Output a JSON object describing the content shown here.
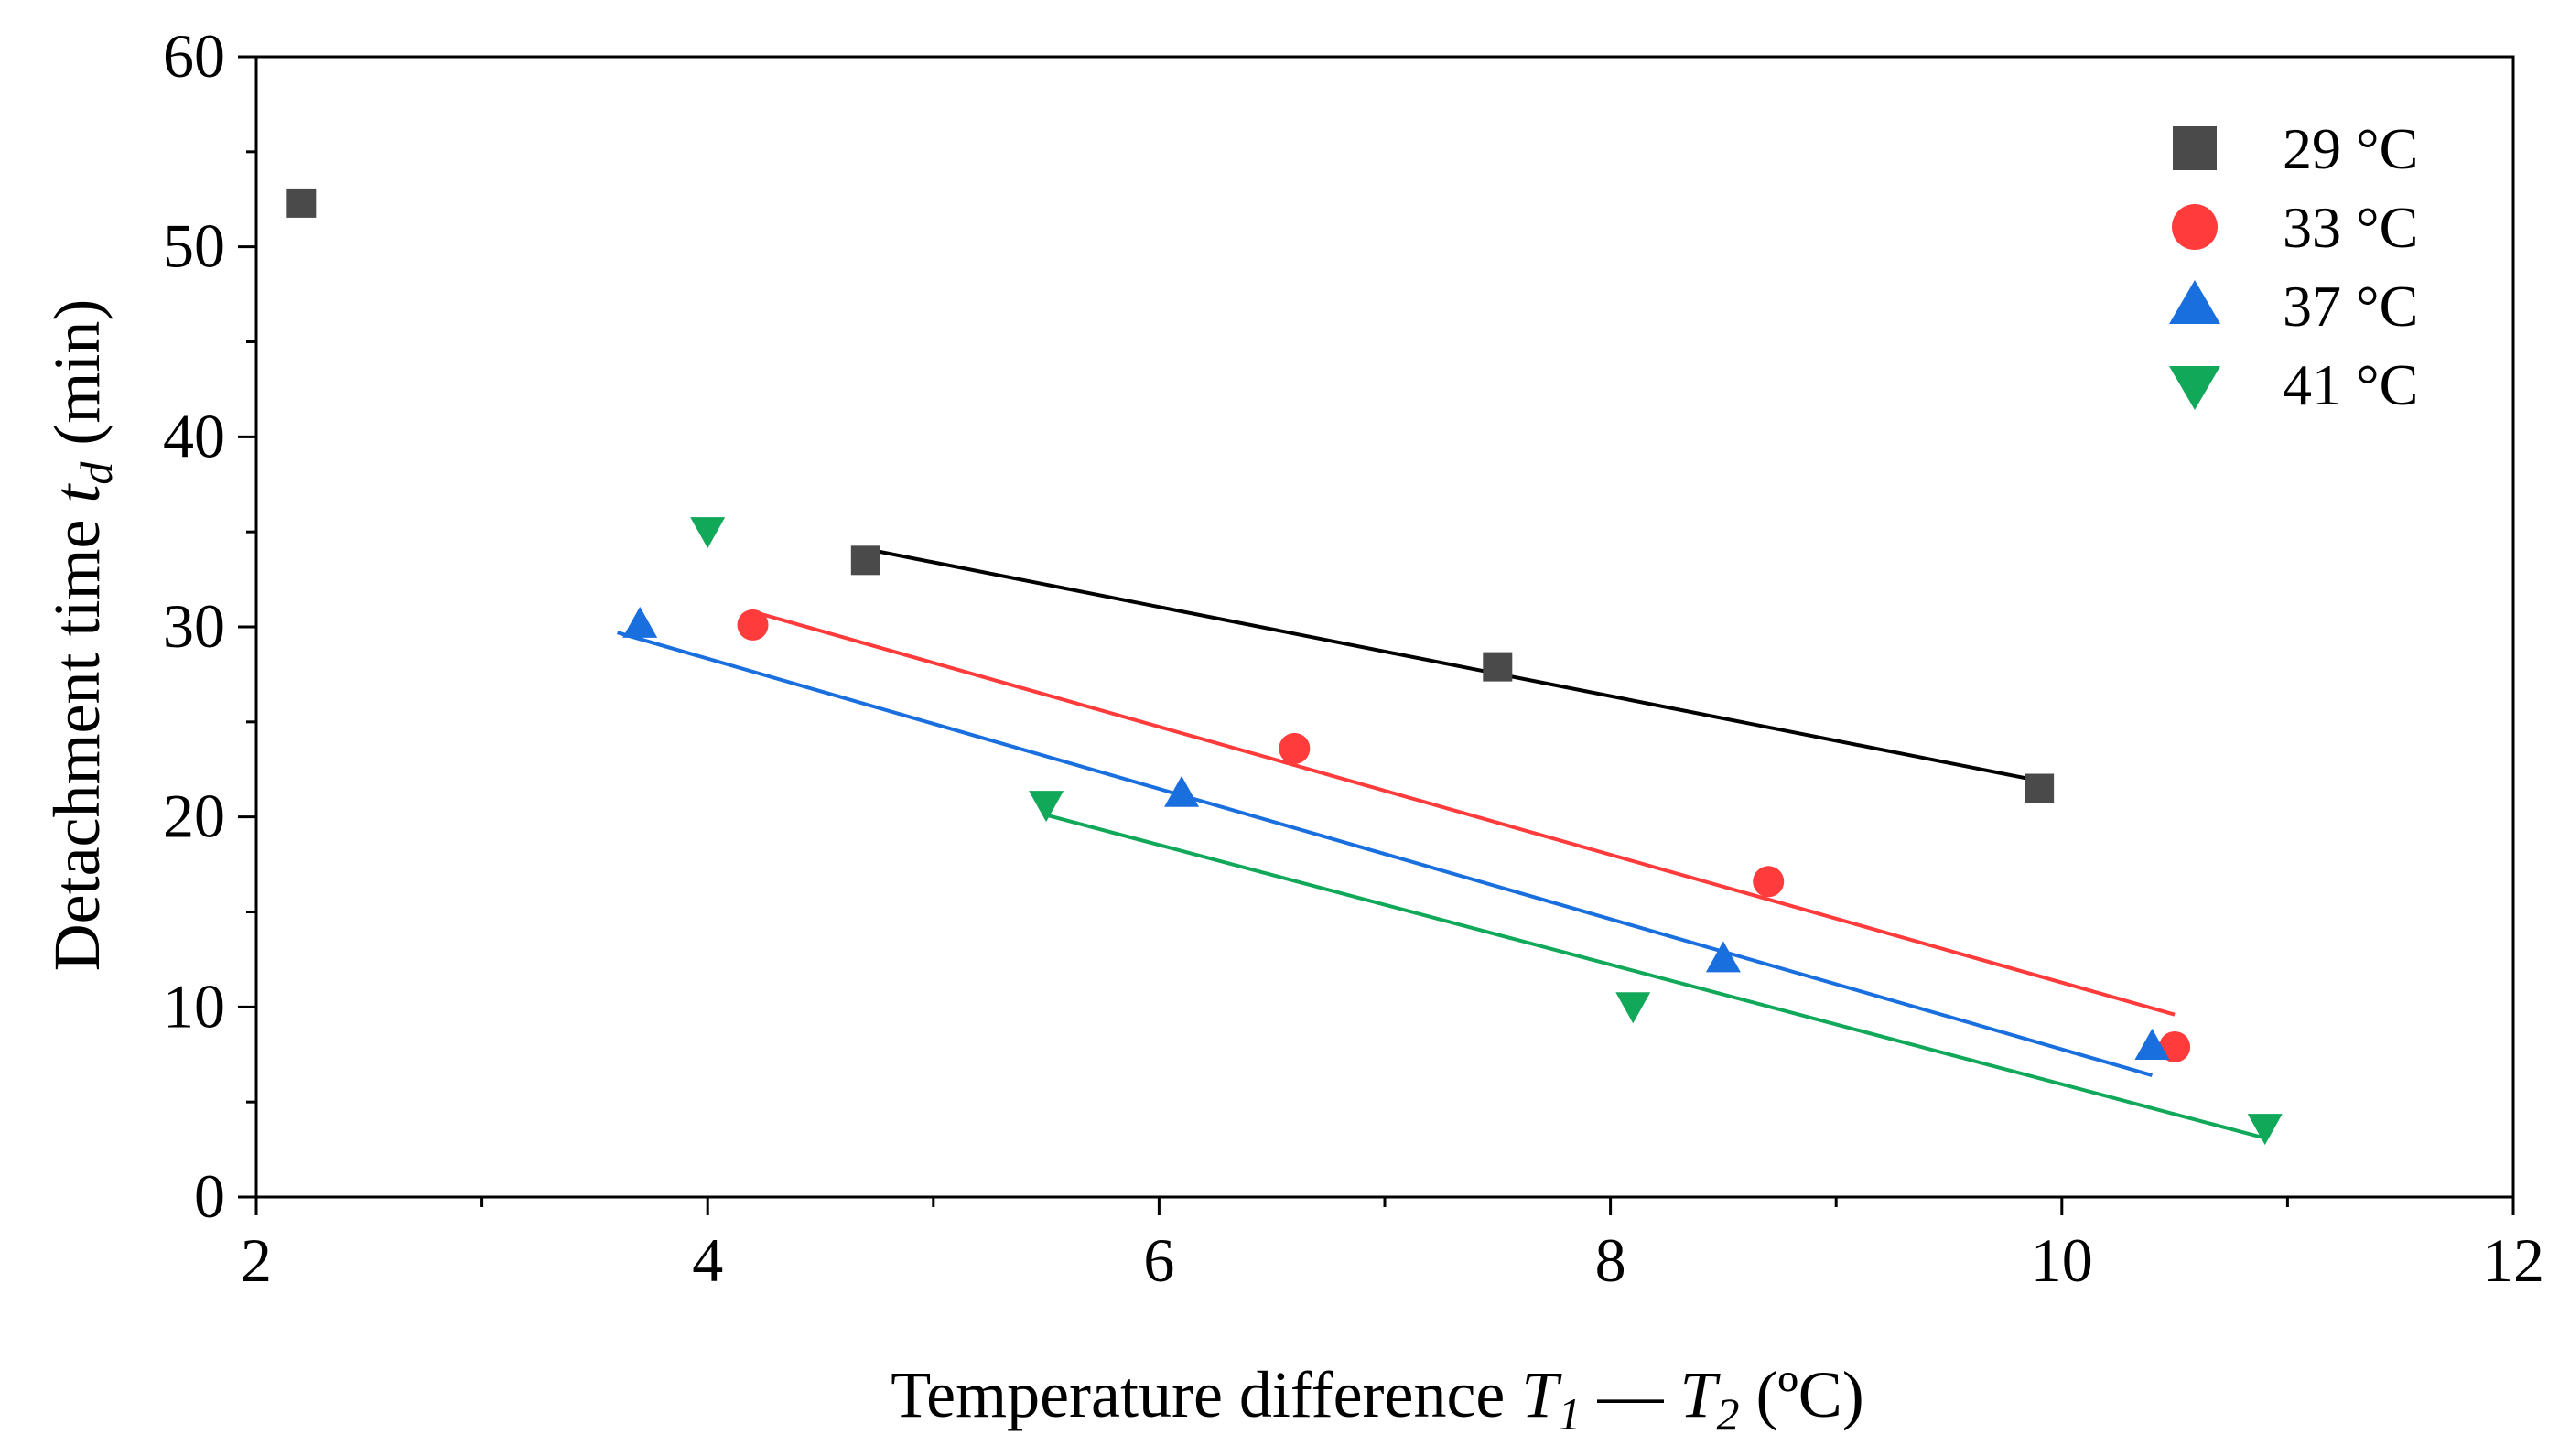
{
  "chart_data": {
    "type": "scatter",
    "title": "",
    "xlabel": {
      "prefix": "Temperature difference ",
      "var1": "T",
      "sub1": "1",
      "dash": " — ",
      "var2": "T",
      "sub2": "2",
      "unit": " (ºC)"
    },
    "ylabel": {
      "prefix": "Detachment time ",
      "var": "t",
      "sub": "d",
      "unit": " (min)"
    },
    "xlim": [
      2,
      12
    ],
    "ylim": [
      0,
      60
    ],
    "xticks": [
      "2",
      "4",
      "6",
      "8",
      "10",
      "12"
    ],
    "yticks": [
      "0",
      "10",
      "20",
      "30",
      "40",
      "50",
      "60"
    ],
    "grid": false,
    "legend_position": "top-right",
    "series": [
      {
        "name": "29 °C",
        "marker": "square",
        "color": "#4a4a4a",
        "fit_color": "#000000",
        "points": [
          [
            2.2,
            52.3
          ],
          [
            4.7,
            33.5
          ],
          [
            7.5,
            27.9
          ],
          [
            9.9,
            21.5
          ]
        ],
        "fit": [
          [
            4.7,
            34.1
          ],
          [
            9.9,
            21.9
          ]
        ]
      },
      {
        "name": "33 °C",
        "marker": "circle",
        "color": "#ff3b3b",
        "fit_color": "#ff3b3b",
        "points": [
          [
            4.2,
            30.1
          ],
          [
            6.6,
            23.6
          ],
          [
            8.7,
            16.6
          ],
          [
            10.5,
            7.9
          ]
        ],
        "fit": [
          [
            4.2,
            30.8
          ],
          [
            10.5,
            9.6
          ]
        ]
      },
      {
        "name": "37 °C",
        "marker": "triangle-up",
        "color": "#1a6fdf",
        "fit_color": "#1a6fdf",
        "points": [
          [
            3.7,
            30.1
          ],
          [
            6.1,
            21.2
          ],
          [
            8.5,
            12.5
          ],
          [
            10.4,
            7.9
          ]
        ],
        "fit": [
          [
            3.6,
            29.7
          ],
          [
            10.4,
            6.4
          ]
        ]
      },
      {
        "name": "41 °C",
        "marker": "triangle-down",
        "color": "#11a85a",
        "fit_color": "#11a85a",
        "points": [
          [
            4.0,
            35.1
          ],
          [
            5.5,
            20.7
          ],
          [
            8.1,
            10.1
          ],
          [
            10.9,
            3.7
          ]
        ],
        "fit": [
          [
            5.5,
            20.1
          ],
          [
            10.9,
            3.1
          ]
        ]
      }
    ]
  }
}
